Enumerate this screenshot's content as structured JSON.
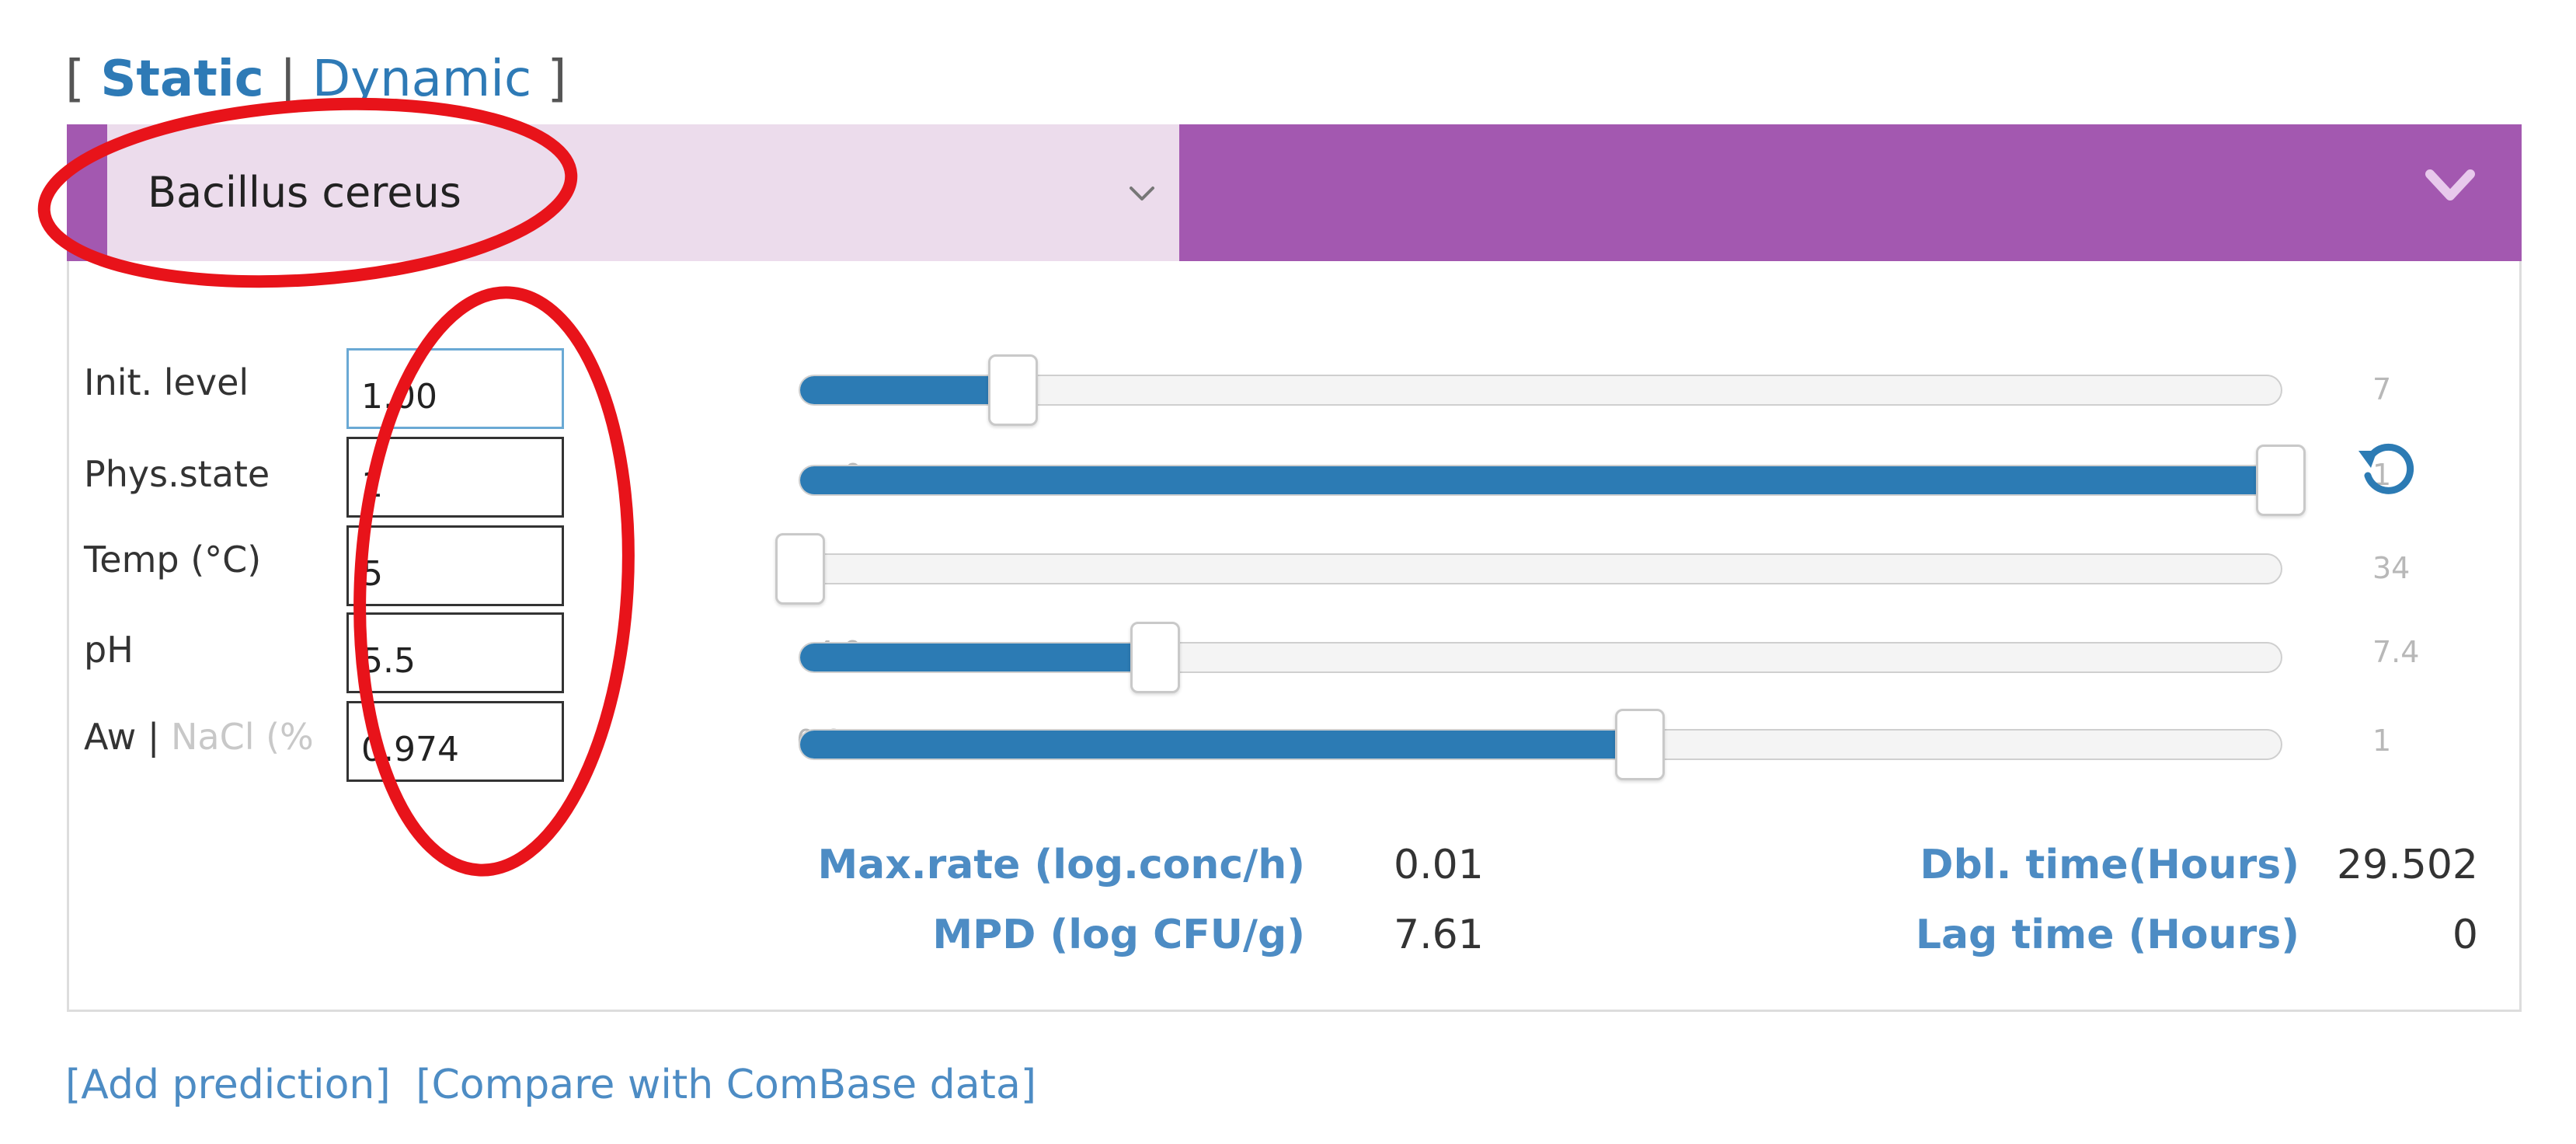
{
  "mode_switch": {
    "open_bracket": "[",
    "static_label": "Static",
    "separator": "|",
    "dynamic_label": "Dynamic",
    "close_bracket": "]"
  },
  "header": {
    "organism_select": {
      "selected_value": "Bacillus cereus"
    },
    "colors": {
      "header_bg": "#a358b0",
      "select_bg": "#ecdcec"
    }
  },
  "conditions": [
    {
      "label": "Init. level",
      "input_value": "1.00",
      "slider_min": "0",
      "slider_max": "7",
      "slider_fraction": 0.144
    },
    {
      "label": "Phys.state",
      "input_value": "1",
      "slider_min": "0",
      "slider_max": "1",
      "slider_fraction": 1.0
    },
    {
      "label": "Temp (°C)",
      "input_value": "5",
      "slider_min": "",
      "slider_max": "34",
      "slider_fraction": 0.0
    },
    {
      "label": "pH",
      "input_value": "5.5",
      "slider_min": "4.9",
      "slider_max": "7.4",
      "slider_fraction": 0.24
    },
    {
      "label": "Aw",
      "label_sep": "|",
      "label_alt": "NaCl (%",
      "input_value": "0.974",
      "slider_min": "0.94",
      "slider_max": "1",
      "slider_fraction": 0.567
    }
  ],
  "results": {
    "max_rate": {
      "label": "Max.rate (log.conc/h)",
      "value": "0.01"
    },
    "mpd": {
      "label": "MPD (log CFU/g)",
      "value": "7.61"
    },
    "dbl_time": {
      "label": "Dbl. time(Hours)",
      "value": "29.502"
    },
    "lag_time": {
      "label": "Lag time (Hours)",
      "value": "0"
    }
  },
  "footer": {
    "add_prediction": "[Add prediction]",
    "compare": "[Compare with ComBase data]"
  },
  "icons": {
    "select_chevron": "chevron-down-icon",
    "header_chevron": "chevron-down-icon",
    "reset": "reset-icon"
  },
  "annotation_color": "#e8131a"
}
